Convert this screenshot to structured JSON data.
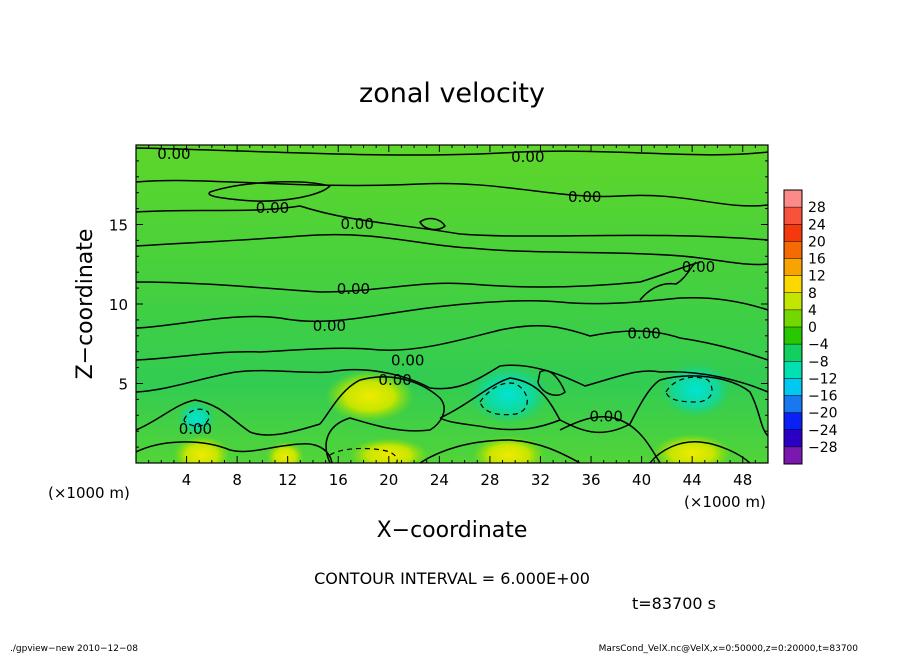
{
  "chart_data": {
    "type": "heatmap",
    "title": "zonal velocity",
    "xlabel": "X−coordinate",
    "ylabel": "Z−coordinate",
    "x_unit_label_left": "(×1000 m)",
    "x_unit_label_right": "(×1000 m)",
    "xlim": [
      0,
      50
    ],
    "ylim": [
      0,
      20
    ],
    "x_ticks": [
      4,
      8,
      12,
      16,
      20,
      24,
      28,
      32,
      36,
      40,
      44,
      48
    ],
    "y_ticks": [
      5,
      10,
      15
    ],
    "grid": false,
    "contour_interval_text": "CONTOUR INTERVAL = 6.000E+00",
    "time_text": "t=83700 s",
    "contour_labels": [
      {
        "text": "0.00",
        "x": 3,
        "y": 19.4
      },
      {
        "text": "0.00",
        "x": 31,
        "y": 19.2
      },
      {
        "text": "0.00",
        "x": 35.5,
        "y": 16.7
      },
      {
        "text": "0.00",
        "x": 10.8,
        "y": 16.0
      },
      {
        "text": "0.00",
        "x": 17.5,
        "y": 15.0
      },
      {
        "text": "0.00",
        "x": 44.5,
        "y": 12.3
      },
      {
        "text": "0.00",
        "x": 17.2,
        "y": 10.9
      },
      {
        "text": "0.00",
        "x": 15.3,
        "y": 8.6
      },
      {
        "text": "0.00",
        "x": 40.2,
        "y": 8.1
      },
      {
        "text": "0.00",
        "x": 21.5,
        "y": 6.4
      },
      {
        "text": "0.00",
        "x": 20.5,
        "y": 5.2
      },
      {
        "text": "0.00",
        "x": 37.2,
        "y": 2.9
      },
      {
        "text": "0.00",
        "x": 4.7,
        "y": 2.1
      }
    ],
    "features": [
      {
        "kind": "positive",
        "x": 18.5,
        "y": 4.2,
        "rx": 2.8,
        "ry": 1.2,
        "value": 6
      },
      {
        "kind": "negative",
        "x": 29.5,
        "y": 4.3,
        "rx": 2.6,
        "ry": 1.4,
        "value": -9
      },
      {
        "kind": "negative",
        "x": 44.3,
        "y": 4.6,
        "rx": 2.3,
        "ry": 1.3,
        "value": -10
      },
      {
        "kind": "negative",
        "x": 4.8,
        "y": 2.8,
        "rx": 1.2,
        "ry": 0.8,
        "value": -8
      },
      {
        "kind": "positive",
        "x": 5.2,
        "y": 0.5,
        "rx": 1.8,
        "ry": 0.9,
        "value": 7
      },
      {
        "kind": "positive",
        "x": 11.8,
        "y": 0.4,
        "rx": 1.2,
        "ry": 0.7,
        "value": 6
      },
      {
        "kind": "positive",
        "x": 20.0,
        "y": 0.5,
        "rx": 2.5,
        "ry": 0.8,
        "value": 6
      },
      {
        "kind": "positive",
        "x": 29.5,
        "y": 0.5,
        "rx": 2.3,
        "ry": 0.9,
        "value": 7
      },
      {
        "kind": "positive",
        "x": 44.0,
        "y": 0.6,
        "rx": 2.5,
        "ry": 0.9,
        "value": 7
      }
    ],
    "colorbar": {
      "labels": [
        "28",
        "24",
        "20",
        "16",
        "12",
        "8",
        "4",
        "0",
        "−4",
        "−8",
        "−12",
        "−16",
        "−20",
        "−24",
        "−28"
      ],
      "colors": [
        "#fb8a8a",
        "#f8533a",
        "#f4390d",
        "#f66a02",
        "#f7a400",
        "#fbd800",
        "#c2e600",
        "#73d800",
        "#28c800",
        "#12d060",
        "#00e0b0",
        "#00c8f0",
        "#1878f0",
        "#0a20f4",
        "#2c00c4",
        "#7a18b0"
      ]
    }
  },
  "footer": {
    "left_text": "./gpview−new  2010−12−08",
    "right_text": "MarsCond_VelX.nc@VelX,x=0:50000,z=0:20000,t=83700"
  }
}
